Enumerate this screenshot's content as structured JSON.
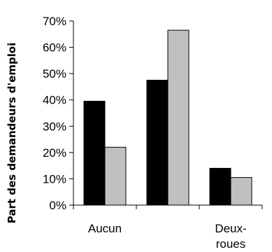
{
  "chart_data": {
    "type": "bar",
    "ylabel": "Part des demandeurs d'emploi",
    "ylim": [
      0,
      70
    ],
    "yticks": [
      "0%",
      "10%",
      "20%",
      "30%",
      "40%",
      "50%",
      "60%",
      "70%"
    ],
    "ytick_values": [
      0,
      10,
      20,
      30,
      40,
      50,
      60,
      70
    ],
    "categories": [
      "Aucun",
      "",
      "Deux-\nroues"
    ],
    "category_label_lines": [
      [
        "Aucun"
      ],
      [],
      [
        "Deux-",
        "roues"
      ]
    ],
    "series": [
      {
        "values": [
          39.5,
          47.5,
          14
        ],
        "color": "#000000"
      },
      {
        "values": [
          22,
          66.5,
          10.5
        ],
        "color": "#c0c0c0"
      }
    ],
    "grid": false,
    "legend": "none"
  }
}
